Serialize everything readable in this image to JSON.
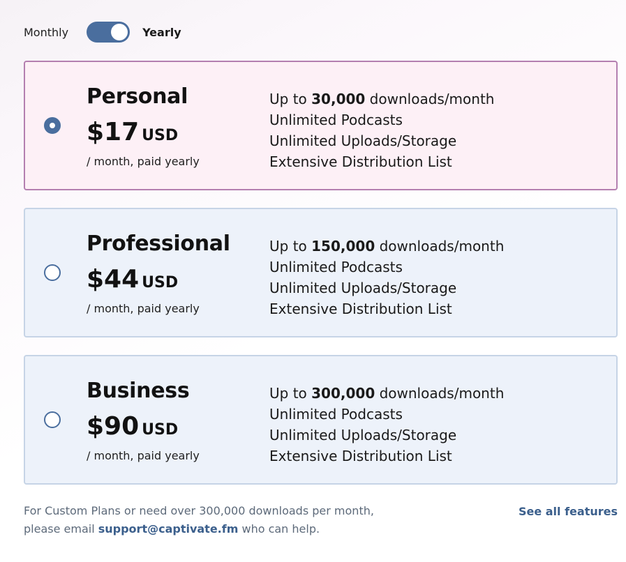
{
  "billing_toggle": {
    "monthly_label": "Monthly",
    "yearly_label": "Yearly",
    "selected": "yearly"
  },
  "plans": [
    {
      "name": "Personal",
      "price": "$17",
      "currency": "USD",
      "period": "/ month, paid yearly",
      "selected": true,
      "features": {
        "downloads_prefix": "Up to ",
        "downloads_value": "30,000",
        "downloads_suffix": " downloads/month",
        "podcasts": "Unlimited Podcasts",
        "storage": "Unlimited Uploads/Storage",
        "distribution": "Extensive Distribution List"
      }
    },
    {
      "name": "Professional",
      "price": "$44",
      "currency": "USD",
      "period": "/ month, paid yearly",
      "selected": false,
      "features": {
        "downloads_prefix": "Up to ",
        "downloads_value": "150,000",
        "downloads_suffix": " downloads/month",
        "podcasts": "Unlimited Podcasts",
        "storage": "Unlimited Uploads/Storage",
        "distribution": "Extensive Distribution List"
      }
    },
    {
      "name": "Business",
      "price": "$90",
      "currency": "USD",
      "period": "/ month, paid yearly",
      "selected": false,
      "features": {
        "downloads_prefix": "Up to ",
        "downloads_value": "300,000",
        "downloads_suffix": " downloads/month",
        "podcasts": "Unlimited Podcasts",
        "storage": "Unlimited Uploads/Storage",
        "distribution": "Extensive Distribution List"
      }
    }
  ],
  "footer": {
    "note_before": "For Custom Plans or need over 300,000 downloads per month, please email ",
    "email": "support@captivate.fm",
    "note_after": " who can help.",
    "see_all_label": "See all features"
  },
  "colors": {
    "accent": "#4a6e9e",
    "link": "#3b5f8c",
    "selected_border": "#b47fb0",
    "selected_bg": "#fdf0f6",
    "card_bg": "#edf2fa",
    "card_border": "#c6d4e6"
  }
}
